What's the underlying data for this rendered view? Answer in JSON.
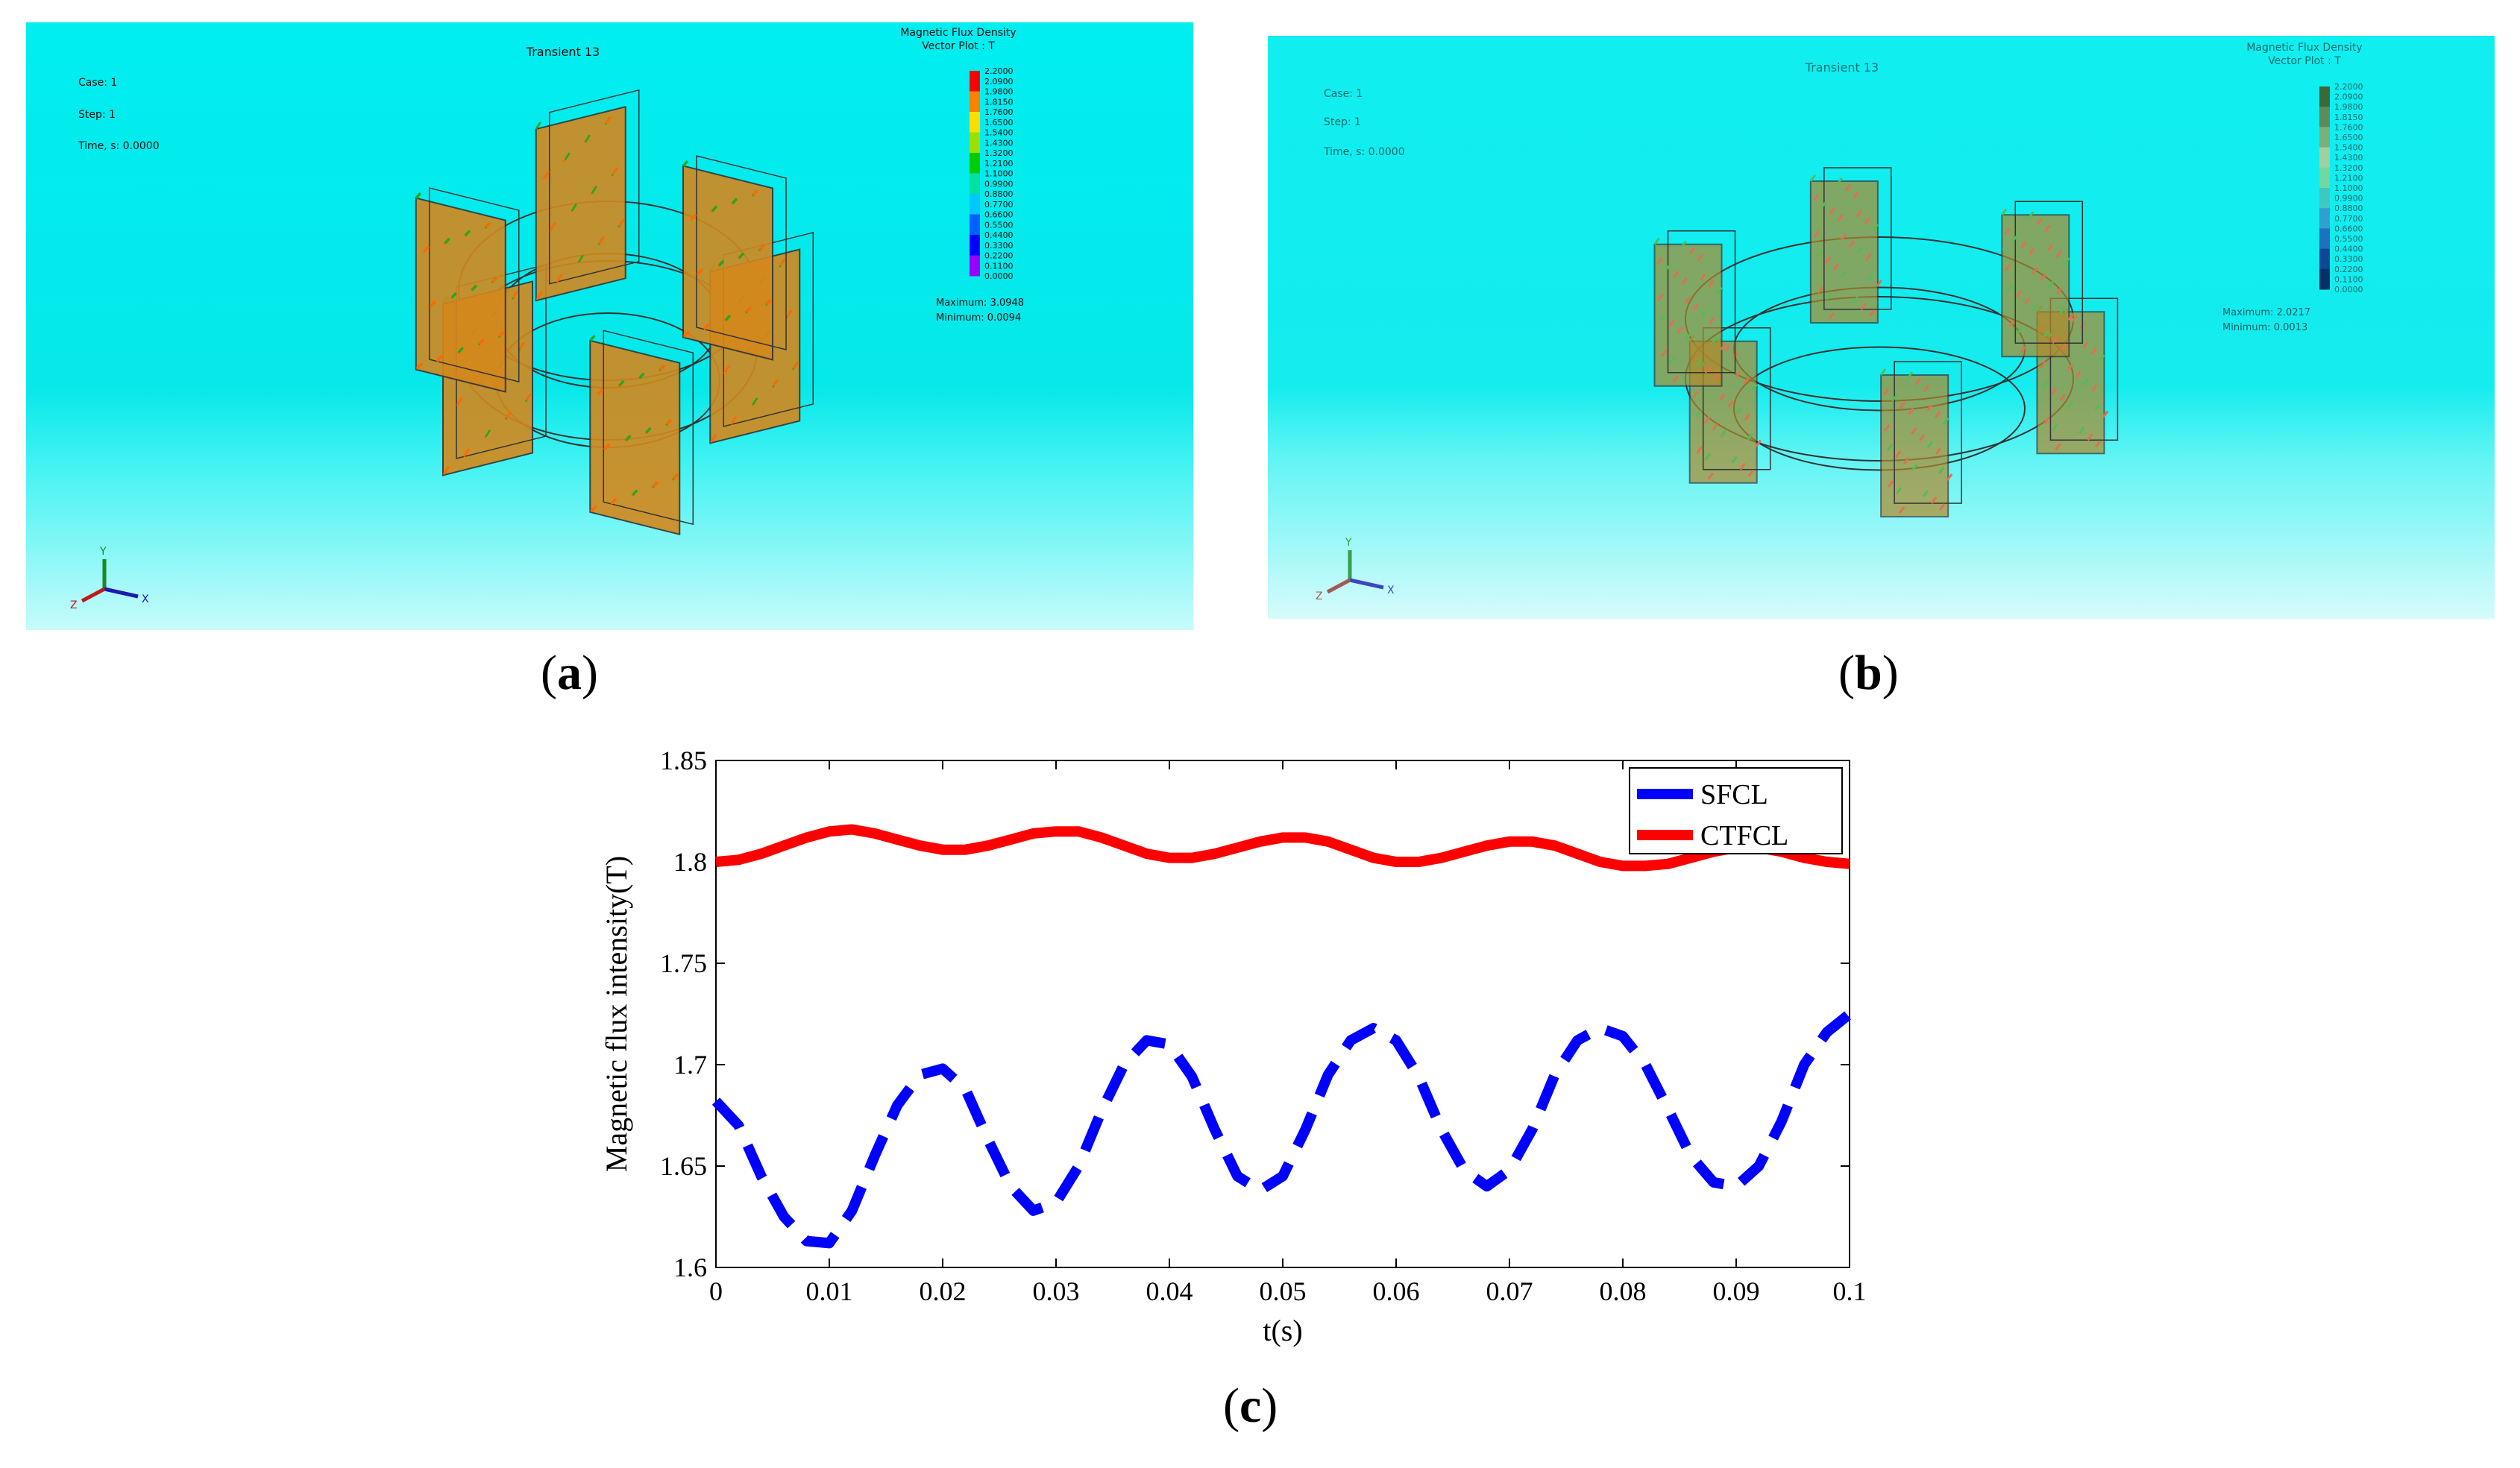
{
  "panels": {
    "a": {
      "label_letter": "a",
      "title": "Transient 13",
      "info": [
        "Case: 1",
        "Step: 1",
        "Time, s: 0.0000"
      ],
      "legend_title_1": "Magnetic Flux Density",
      "legend_title_2": "Vector Plot : T",
      "ticks": [
        "2.2000",
        "2.0900",
        "1.9800",
        "1.8150",
        "1.7600",
        "1.6500",
        "1.5400",
        "1.4300",
        "1.3200",
        "1.2100",
        "1.1000",
        "0.9900",
        "0.8800",
        "0.7700",
        "0.6600",
        "0.5500",
        "0.4400",
        "0.3300",
        "0.2200",
        "0.1100",
        "0.0000"
      ],
      "maximum": "Maximum: 3.0948",
      "minimum": "Minimum: 0.0094",
      "colorbar": [
        "#ff0000",
        "#ff7f00",
        "#ffdd00",
        "#9be000",
        "#00cc00",
        "#00e0a0",
        "#00c8ff",
        "#0060ff",
        "#0000ff",
        "#9900ff"
      ]
    },
    "b": {
      "label_letter": "b",
      "title": "Transient 13",
      "info": [
        "Case: 1",
        "Step: 1",
        "Time, s: 0.0000"
      ],
      "legend_title_1": "Magnetic Flux Density",
      "legend_title_2": "Vector Plot : T",
      "ticks": [
        "2.2000",
        "2.0900",
        "1.9800",
        "1.8150",
        "1.7600",
        "1.6500",
        "1.5400",
        "1.4300",
        "1.3200",
        "1.2100",
        "1.1000",
        "0.9900",
        "0.8800",
        "0.7700",
        "0.6600",
        "0.5500",
        "0.4400",
        "0.3300",
        "0.2200",
        "0.1100",
        "0.0000"
      ],
      "maximum": "Maximum: 2.0217",
      "minimum": "Minimum: 0.0013",
      "colorbar": [
        "#3a6a3a",
        "#5c8c5c",
        "#7ab07a",
        "#a0d0a0",
        "#70d8a0",
        "#40c8c0",
        "#30a0d0",
        "#2070c0",
        "#104898",
        "#083068"
      ]
    }
  },
  "chart_label_letter": "c",
  "chart_data": {
    "type": "line",
    "xlabel": "t(s)",
    "ylabel": "Magnetic flux intensity(T)",
    "xlim": [
      0,
      0.1
    ],
    "ylim": [
      1.6,
      1.85
    ],
    "xticks": [
      "0",
      "0.01",
      "0.02",
      "0.03",
      "0.04",
      "0.05",
      "0.06",
      "0.07",
      "0.08",
      "0.09",
      "0.1"
    ],
    "yticks": [
      "1.6",
      "1.65",
      "1.7",
      "1.75",
      "1.8",
      "1.85"
    ],
    "legend_position": "top-right",
    "series": [
      {
        "name": "SFCL",
        "color": "#0000ff",
        "style": "dashed",
        "x": [
          0,
          0.002,
          0.004,
          0.006,
          0.008,
          0.01,
          0.012,
          0.014,
          0.016,
          0.018,
          0.02,
          0.022,
          0.024,
          0.026,
          0.028,
          0.03,
          0.032,
          0.034,
          0.036,
          0.038,
          0.04,
          0.042,
          0.044,
          0.046,
          0.048,
          0.05,
          0.052,
          0.054,
          0.056,
          0.058,
          0.06,
          0.062,
          0.064,
          0.066,
          0.068,
          0.07,
          0.072,
          0.074,
          0.076,
          0.078,
          0.08,
          0.082,
          0.084,
          0.086,
          0.088,
          0.09,
          0.092,
          0.094,
          0.096,
          0.098,
          0.1
        ],
        "values": [
          1.682,
          1.67,
          1.645,
          1.625,
          1.613,
          1.612,
          1.628,
          1.655,
          1.68,
          1.695,
          1.698,
          1.688,
          1.663,
          1.64,
          1.628,
          1.632,
          1.65,
          1.677,
          1.7,
          1.712,
          1.71,
          1.694,
          1.668,
          1.645,
          1.638,
          1.645,
          1.668,
          1.695,
          1.712,
          1.718,
          1.712,
          1.694,
          1.668,
          1.648,
          1.64,
          1.648,
          1.668,
          1.695,
          1.712,
          1.718,
          1.714,
          1.7,
          1.678,
          1.655,
          1.642,
          1.64,
          1.65,
          1.672,
          1.7,
          1.716,
          1.725
        ]
      },
      {
        "name": "CTFCL",
        "color": "#ff0000",
        "style": "solid",
        "x": [
          0,
          0.002,
          0.004,
          0.006,
          0.008,
          0.01,
          0.012,
          0.014,
          0.016,
          0.018,
          0.02,
          0.022,
          0.024,
          0.026,
          0.028,
          0.03,
          0.032,
          0.034,
          0.036,
          0.038,
          0.04,
          0.042,
          0.044,
          0.046,
          0.048,
          0.05,
          0.052,
          0.054,
          0.056,
          0.058,
          0.06,
          0.062,
          0.064,
          0.066,
          0.068,
          0.07,
          0.072,
          0.074,
          0.076,
          0.078,
          0.08,
          0.082,
          0.084,
          0.086,
          0.088,
          0.09,
          0.092,
          0.094,
          0.096,
          0.098,
          0.1
        ],
        "values": [
          1.8,
          1.801,
          1.804,
          1.808,
          1.812,
          1.815,
          1.816,
          1.814,
          1.811,
          1.808,
          1.806,
          1.806,
          1.808,
          1.811,
          1.814,
          1.815,
          1.815,
          1.812,
          1.808,
          1.804,
          1.802,
          1.802,
          1.804,
          1.807,
          1.81,
          1.812,
          1.812,
          1.81,
          1.806,
          1.802,
          1.8,
          1.8,
          1.802,
          1.805,
          1.808,
          1.81,
          1.81,
          1.808,
          1.804,
          1.8,
          1.798,
          1.798,
          1.799,
          1.802,
          1.805,
          1.807,
          1.807,
          1.805,
          1.802,
          1.8,
          1.799
        ]
      }
    ]
  }
}
